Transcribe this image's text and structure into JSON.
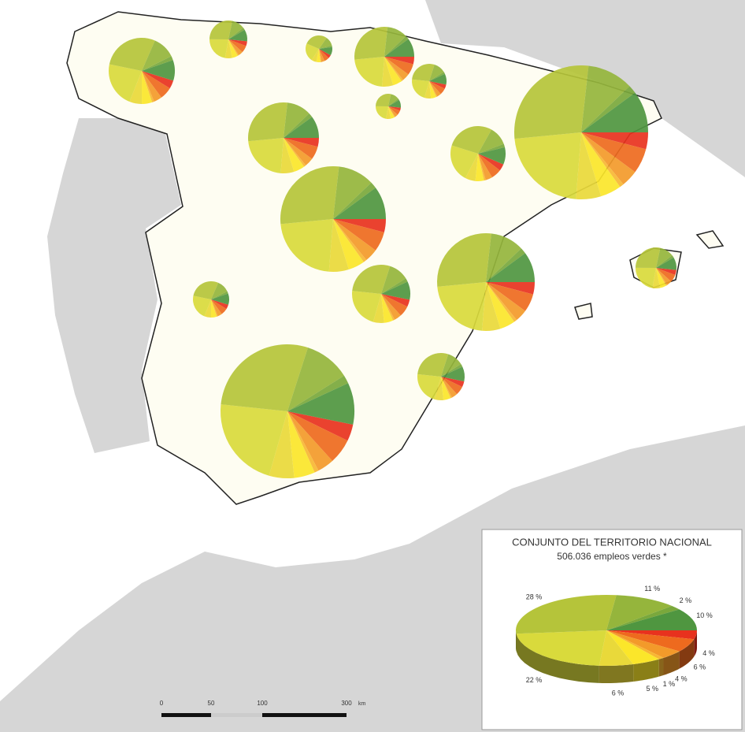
{
  "legend": {
    "title": "CONJUNTO DEL TERRITORIO NACIONAL",
    "subtitle": "506.036 empleos verdes *"
  },
  "chart_data": {
    "type": "pie",
    "values": [
      4,
      6,
      4,
      1,
      5,
      6,
      22,
      28,
      11,
      2,
      10
    ],
    "value_labels": [
      "4 %",
      "6 %",
      "4 %",
      "1 %",
      "5 %",
      "6 %",
      "22 %",
      "28 %",
      "11 %",
      "2 %",
      "10 %"
    ],
    "colors": [
      "#e8321e",
      "#ee6a1e",
      "#f39a2a",
      "#f7b733",
      "#fbe62a",
      "#e9d93a",
      "#d9da3c",
      "#b5c43a",
      "#95b53c",
      "#7aa83c",
      "#4f9640"
    ]
  },
  "scale_bar": {
    "labels": [
      "0",
      "50",
      "100",
      "300"
    ],
    "unit": "km"
  }
}
